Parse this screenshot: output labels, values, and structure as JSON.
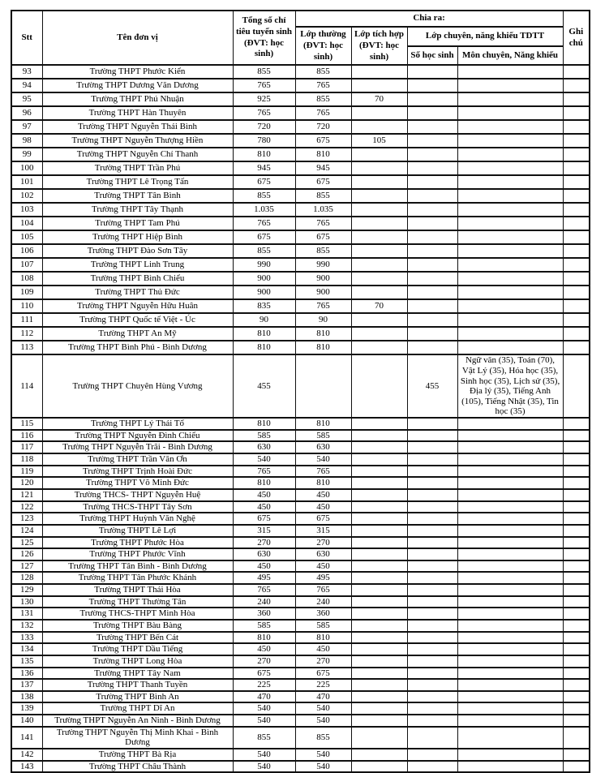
{
  "table": {
    "columns": {
      "stt": "Stt",
      "ten_don_vi": "Tên đơn vị",
      "tong_so": "Tổng số chỉ tiêu tuyển sinh (ĐVT: học sinh)",
      "chia_ra": "Chia ra:",
      "lop_thuong": "Lớp thường (ĐVT: học sinh)",
      "lop_tich_hop": "Lớp tích hợp (ĐVT: học sinh)",
      "lop_chuyen": "Lớp chuyên, năng khiếu TDTT",
      "so_hoc_sinh": "Số học sinh",
      "mon_chuyen": "Môn chuyên, Năng khiếu",
      "ghi_chu": "Ghi chú"
    },
    "row_fields": [
      "stt",
      "name",
      "total",
      "regular",
      "integrated",
      "special_count",
      "special_subjects",
      "note"
    ],
    "rows": [
      [
        "93",
        "Trường THPT Phước Kiển",
        "855",
        "855",
        "",
        "",
        "",
        ""
      ],
      [
        "94",
        "Trường THPT Dương Văn Dương",
        "765",
        "765",
        "",
        "",
        "",
        ""
      ],
      [
        "95",
        "Trường THPT Phú Nhuận",
        "925",
        "855",
        "70",
        "",
        "",
        ""
      ],
      [
        "96",
        "Trường THPT Hàn Thuyên",
        "765",
        "765",
        "",
        "",
        "",
        ""
      ],
      [
        "97",
        "Trường THPT Nguyễn Thái Bình",
        "720",
        "720",
        "",
        "",
        "",
        ""
      ],
      [
        "98",
        "Trường THPT Nguyễn Thượng Hiền",
        "780",
        "675",
        "105",
        "",
        "",
        ""
      ],
      [
        "99",
        "Trường THPT Nguyễn Chí Thanh",
        "810",
        "810",
        "",
        "",
        "",
        ""
      ],
      [
        "100",
        "Trường THPT Trần Phú",
        "945",
        "945",
        "",
        "",
        "",
        ""
      ],
      [
        "101",
        "Trường THPT Lê Trọng Tấn",
        "675",
        "675",
        "",
        "",
        "",
        ""
      ],
      [
        "102",
        "Trường THPT Tân Bình",
        "855",
        "855",
        "",
        "",
        "",
        ""
      ],
      [
        "103",
        "Trường THPT Tây Thạnh",
        "1.035",
        "1.035",
        "",
        "",
        "",
        ""
      ],
      [
        "104",
        "Trường THPT Tam Phú",
        "765",
        "765",
        "",
        "",
        "",
        ""
      ],
      [
        "105",
        "Trường THPT Hiệp Bình",
        "675",
        "675",
        "",
        "",
        "",
        ""
      ],
      [
        "106",
        "Trường THPT Đào Sơn Tây",
        "855",
        "855",
        "",
        "",
        "",
        ""
      ],
      [
        "107",
        "Trường THPT Linh Trung",
        "990",
        "990",
        "",
        "",
        "",
        ""
      ],
      [
        "108",
        "Trường THPT Bình Chiểu",
        "900",
        "900",
        "",
        "",
        "",
        ""
      ],
      [
        "109",
        "Trường THPT Thủ Đức",
        "900",
        "900",
        "",
        "",
        "",
        ""
      ],
      [
        "110",
        "Trường THPT Nguyễn Hữu Huân",
        "835",
        "765",
        "70",
        "",
        "",
        ""
      ],
      [
        "111",
        "Trường THPT Quốc tế Việt - Úc",
        "90",
        "90",
        "",
        "",
        "",
        ""
      ],
      [
        "112",
        "Trường THPT An Mỹ",
        "810",
        "810",
        "",
        "",
        "",
        ""
      ],
      [
        "113",
        "Trường THPT Bình Phú  - Bình Dương",
        "810",
        "810",
        "",
        "",
        "",
        ""
      ],
      [
        "114",
        "Trường THPT Chuyên Hùng Vương",
        "455",
        "",
        "",
        "455",
        "Ngữ văn (35), Toán (70), Vật Lý (35), Hóa học (35), Sinh học (35), Lịch sử (35), Địa lý (35), Tiếng Anh (105), Tiếng Nhật (35), Tin học (35)",
        ""
      ],
      [
        "115",
        "Trường THPT Lý Thái Tổ",
        "810",
        "810",
        "",
        "",
        "",
        ""
      ],
      [
        "116",
        "Trường THPT Nguyễn Đình Chiểu",
        "585",
        "585",
        "",
        "",
        "",
        ""
      ],
      [
        "117",
        "Trường THPT Nguyễn Trãi  - Bình Dương",
        "630",
        "630",
        "",
        "",
        "",
        ""
      ],
      [
        "118",
        "Trường THPT Trần Văn Ơn",
        "540",
        "540",
        "",
        "",
        "",
        ""
      ],
      [
        "119",
        "Trường THPT Trịnh Hoài Đức",
        "765",
        "765",
        "",
        "",
        "",
        ""
      ],
      [
        "120",
        "Trường THPT Võ Minh Đức",
        "810",
        "810",
        "",
        "",
        "",
        ""
      ],
      [
        "121",
        "Trường THCS- THPT Nguyễn Huệ",
        "450",
        "450",
        "",
        "",
        "",
        ""
      ],
      [
        "122",
        "Trường THCS-THPT Tây Sơn",
        "450",
        "450",
        "",
        "",
        "",
        ""
      ],
      [
        "123",
        "Trường THPT Huỳnh Văn Nghệ",
        "675",
        "675",
        "",
        "",
        "",
        ""
      ],
      [
        "124",
        "Trường THPT Lê Lợi",
        "315",
        "315",
        "",
        "",
        "",
        ""
      ],
      [
        "125",
        "Trường THPT Phước Hòa",
        "270",
        "270",
        "",
        "",
        "",
        ""
      ],
      [
        "126",
        "Trường THPT Phước Vĩnh",
        "630",
        "630",
        "",
        "",
        "",
        ""
      ],
      [
        "127",
        "Trường THPT Tân Bình - Bình Dương",
        "450",
        "450",
        "",
        "",
        "",
        ""
      ],
      [
        "128",
        "Trường THPT Tân Phước Khánh",
        "495",
        "495",
        "",
        "",
        "",
        ""
      ],
      [
        "129",
        "Trường THPT Thái Hòa",
        "765",
        "765",
        "",
        "",
        "",
        ""
      ],
      [
        "130",
        "Trường THPT Thường Tân",
        "240",
        "240",
        "",
        "",
        "",
        ""
      ],
      [
        "131",
        "Trường THCS-THPT Minh Hòa",
        "360",
        "360",
        "",
        "",
        "",
        ""
      ],
      [
        "132",
        "Trường THPT  Bàu Bàng",
        "585",
        "585",
        "",
        "",
        "",
        ""
      ],
      [
        "133",
        "Trường THPT Bến Cát",
        "810",
        "810",
        "",
        "",
        "",
        ""
      ],
      [
        "134",
        "Trường THPT Dầu Tiếng",
        "450",
        "450",
        "",
        "",
        "",
        ""
      ],
      [
        "135",
        "Trường THPT Long Hòa",
        "270",
        "270",
        "",
        "",
        "",
        ""
      ],
      [
        "136",
        "Trường THPT Tây Nam",
        "675",
        "675",
        "",
        "",
        "",
        ""
      ],
      [
        "137",
        "Trường THPT Thanh Tuyền",
        "225",
        "225",
        "",
        "",
        "",
        ""
      ],
      [
        "138",
        "Trường THPT Bình An",
        "470",
        "470",
        "",
        "",
        "",
        ""
      ],
      [
        "139",
        "Trường THPT Dĩ An",
        "540",
        "540",
        "",
        "",
        "",
        ""
      ],
      [
        "140",
        "Trường THPT Nguyễn An Ninh - Bình Dương",
        "540",
        "540",
        "",
        "",
        "",
        ""
      ],
      [
        "141",
        "Trường THPT Nguyễn Thị Minh Khai - Bình Dương",
        "855",
        "855",
        "",
        "",
        "",
        ""
      ],
      [
        "142",
        "Trường THPT Bà Rịa",
        "540",
        "540",
        "",
        "",
        "",
        ""
      ],
      [
        "143",
        "Trường THPT Châu Thành",
        "540",
        "540",
        "",
        "",
        "",
        ""
      ]
    ]
  }
}
